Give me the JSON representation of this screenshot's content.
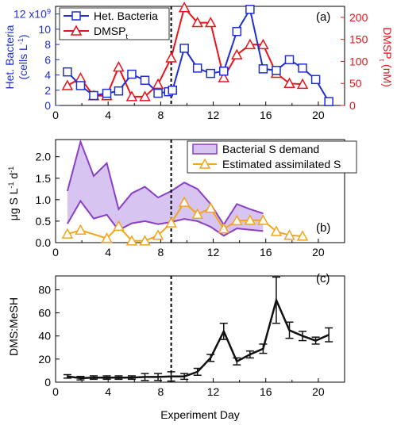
{
  "figure": {
    "xlabel": "Experiment Day",
    "dashed_line_day": 8.8
  },
  "chart_data": [
    {
      "panel": "a",
      "panel_label": "(a)",
      "type": "line",
      "x_ticks": [
        0,
        4,
        8,
        12,
        16,
        20
      ],
      "xlim": [
        0,
        22
      ],
      "left_axis": {
        "label_line1": "Het. Bacteria",
        "label_line2": "(cells L",
        "label_sup": "-1",
        "label_close": ")",
        "color": "#1f2fd1",
        "ylim": [
          0,
          13
        ],
        "ticks": [
          0,
          2,
          4,
          6,
          8,
          10,
          12
        ],
        "top_tick_exponent": "9",
        "top_tick_prefix": "x10"
      },
      "right_axis": {
        "label_main": "DMSP",
        "label_sub": "t",
        "label_unit": " (nM)",
        "color": "#e8141b",
        "ylim": [
          0,
          225
        ],
        "ticks": [
          0,
          50,
          100,
          150,
          200
        ]
      },
      "legend": {
        "position": "top-left"
      },
      "series": [
        {
          "name": "Het. Bacteria",
          "axis": "left",
          "marker": "square",
          "color": "#1f2fd1",
          "x": [
            0.9,
            1.9,
            2.9,
            3.9,
            4.8,
            5.8,
            6.8,
            7.8,
            8.6,
            8.9,
            9.8,
            10.8,
            11.8,
            12.8,
            13.8,
            14.8,
            15.8,
            16.8,
            17.8,
            18.8,
            19.8,
            20.8
          ],
          "y": [
            4.4,
            2.6,
            1.3,
            1.6,
            1.9,
            4.1,
            3.3,
            1.6,
            1.8,
            2.0,
            7.5,
            4.9,
            4.2,
            4.5,
            9.7,
            12.6,
            4.8,
            4.6,
            6.0,
            4.9,
            3.4,
            0.5
          ]
        },
        {
          "name": "DMSP",
          "name_sub": "t",
          "axis": "right",
          "marker": "triangle",
          "color": "#e8141b",
          "x": [
            0.9,
            1.9,
            2.9,
            3.9,
            4.8,
            5.8,
            6.8,
            7.8,
            8.8,
            9.8,
            10.8,
            11.8,
            12.8,
            13.8,
            14.8,
            15.8,
            16.8,
            17.8,
            18.8
          ],
          "y": [
            45,
            62,
            22,
            22,
            87,
            20,
            20,
            48,
            108,
            222,
            188,
            188,
            63,
            115,
            138,
            138,
            73,
            50,
            48
          ]
        }
      ]
    },
    {
      "panel": "b",
      "panel_label": "(b)",
      "type": "area",
      "x_ticks": [
        0,
        4,
        8,
        12,
        16,
        20
      ],
      "xlim": [
        0,
        22
      ],
      "ylabel_main": "μg S L",
      "ylabel_sup1": "-1",
      "ylabel_mid": " d",
      "ylabel_sup2": "-1",
      "ylim": [
        0,
        2.4
      ],
      "y_ticks": [
        0.0,
        0.5,
        1.0,
        1.5,
        2.0
      ],
      "legend": {
        "position": "top-right"
      },
      "band": {
        "name": "Bacterial S demand",
        "fill": "#d8c4f0",
        "stroke": "#8a3fc4",
        "x": [
          0.9,
          1.9,
          2.9,
          3.9,
          4.8,
          5.8,
          6.8,
          7.8,
          8.8,
          9.8,
          10.8,
          11.8,
          12.8,
          13.8,
          14.8,
          15.8
        ],
        "upper": [
          1.2,
          2.35,
          1.55,
          1.85,
          0.78,
          1.15,
          1.3,
          1.05,
          1.2,
          1.4,
          1.25,
          0.9,
          0.42,
          0.9,
          0.78,
          0.68
        ],
        "lower": [
          0.44,
          0.97,
          0.56,
          0.65,
          0.29,
          0.45,
          0.5,
          0.43,
          0.48,
          0.55,
          0.5,
          0.37,
          0.16,
          0.33,
          0.3,
          0.27
        ]
      },
      "series": [
        {
          "name": "Estimated assimilated S",
          "marker": "triangle",
          "color": "#f2a51a",
          "x": [
            0.9,
            1.9,
            3.9,
            4.8,
            5.8,
            6.8,
            7.8,
            8.8,
            9.8,
            10.8,
            11.8,
            12.8,
            13.8,
            14.8,
            15.8,
            16.8,
            17.8,
            18.8
          ],
          "y": [
            0.2,
            0.29,
            0.1,
            0.38,
            0.04,
            0.04,
            0.17,
            0.46,
            0.94,
            0.66,
            0.8,
            0.32,
            0.51,
            0.52,
            0.52,
            0.26,
            0.17,
            0.15
          ]
        }
      ]
    },
    {
      "panel": "c",
      "panel_label": "(c)",
      "type": "line",
      "x_ticks": [
        0,
        4,
        8,
        12,
        16,
        20
      ],
      "xlim": [
        0,
        22
      ],
      "ylabel": "DMS:MeSH",
      "ylim": [
        0,
        92
      ],
      "y_ticks": [
        0,
        20,
        40,
        60,
        80
      ],
      "series": [
        {
          "color": "#111111",
          "error_bars": true,
          "x": [
            0.9,
            1.9,
            2.9,
            3.9,
            4.8,
            5.8,
            6.8,
            7.8,
            8.8,
            9.8,
            10.8,
            11.8,
            12.8,
            13.8,
            14.8,
            15.8,
            16.8,
            17.8,
            18.8,
            19.8,
            20.8
          ],
          "y": [
            5,
            3.5,
            4,
            4,
            4,
            4,
            4.5,
            4.5,
            5,
            5,
            9,
            21,
            44,
            18,
            24,
            29,
            71,
            45,
            40,
            36,
            41
          ],
          "err": [
            1.5,
            1.5,
            1.5,
            1.5,
            1.5,
            1.5,
            3,
            3,
            4,
            2.5,
            3,
            3,
            7,
            3,
            3,
            4,
            20,
            7,
            4,
            3,
            6
          ]
        }
      ]
    }
  ]
}
